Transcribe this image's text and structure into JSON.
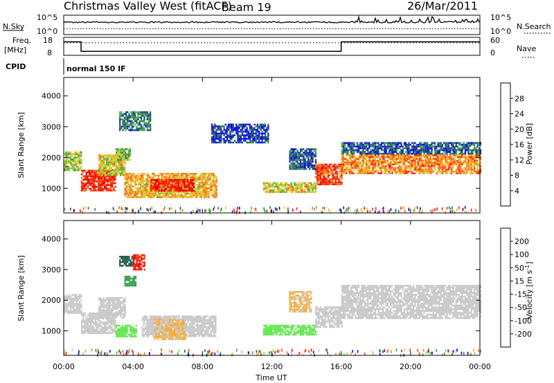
{
  "header": {
    "title": "Christmas Valley West (fitACF)",
    "beam": "Beam 19",
    "date": "26/Mar/2011"
  },
  "strip_labels": {
    "nsky": "N.Sky",
    "nsky_ticks": [
      "10^5",
      "10^0"
    ],
    "nsearch": "N.Search",
    "nsearch_ticks": [
      "10^5",
      "10^0"
    ],
    "freq": "Freq.",
    "freq_unit": "[MHz]",
    "freq_ticks": [
      "18",
      "8"
    ],
    "nave": "Nave",
    "nave_ticks": [
      "60",
      "0"
    ],
    "cpid": "CPID",
    "cpid_value": "normal 150 IF"
  },
  "colors": {
    "power_scale": [
      "#0000ff",
      "#1e3c8c",
      "#2d7d5a",
      "#46b43c",
      "#c8d22d",
      "#ffaa1e",
      "#ff6414",
      "#ff1e00",
      "#e60000"
    ],
    "velocity_scale": [
      "#0000ff",
      "#1e5a46",
      "#37a050",
      "#64e650",
      "#c8c8c8",
      "#ffaa28",
      "#ff7814",
      "#ff3c0a",
      "#ff0000"
    ]
  },
  "chart_data": [
    {
      "type": "heatmap",
      "name": "power",
      "ylabel": "Slant Range [km]",
      "yticks": [
        "1000",
        "2000",
        "3000",
        "4000"
      ],
      "ylim": [
        200,
        4600
      ],
      "xlim": [
        "00:00",
        "24:00"
      ],
      "colorbar_label": "Power [dB]",
      "colorbar_ticks": [
        "4",
        "8",
        "12",
        "16",
        "20",
        "24",
        "28"
      ],
      "colorbar_range": [
        0,
        30
      ],
      "regions": [
        {
          "t0": 0.0,
          "t1": 1.0,
          "r0": 1600,
          "r1": 2200,
          "value": 14
        },
        {
          "t0": 1.0,
          "t1": 3.0,
          "r0": 900,
          "r1": 1600,
          "value": 26
        },
        {
          "t0": 2.0,
          "t1": 3.5,
          "r0": 1400,
          "r1": 2100,
          "value": 16
        },
        {
          "t0": 3.0,
          "t1": 3.8,
          "r0": 1900,
          "r1": 2300,
          "value": 12
        },
        {
          "t0": 3.2,
          "t1": 5.0,
          "r0": 2900,
          "r1": 3500,
          "value": 8
        },
        {
          "t0": 3.5,
          "t1": 8.8,
          "r0": 700,
          "r1": 1500,
          "value": 18
        },
        {
          "t0": 5.0,
          "t1": 7.5,
          "r0": 900,
          "r1": 1300,
          "value": 26
        },
        {
          "t0": 8.5,
          "t1": 11.8,
          "r0": 2500,
          "r1": 3100,
          "value": 4
        },
        {
          "t0": 11.5,
          "t1": 14.5,
          "r0": 900,
          "r1": 1200,
          "value": 16
        },
        {
          "t0": 13.0,
          "t1": 14.5,
          "r0": 1600,
          "r1": 2300,
          "value": 6
        },
        {
          "t0": 14.5,
          "t1": 16.0,
          "r0": 1100,
          "r1": 1800,
          "value": 24
        },
        {
          "t0": 16.0,
          "t1": 24.0,
          "r0": 2100,
          "r1": 2500,
          "value": 6
        },
        {
          "t0": 16.0,
          "t1": 24.0,
          "r0": 1500,
          "r1": 2100,
          "value": 20
        }
      ]
    },
    {
      "type": "heatmap",
      "name": "velocity",
      "ylabel": "Slant Range [km]",
      "yticks": [
        "1000",
        "2000",
        "3000",
        "4000"
      ],
      "ylim": [
        200,
        4600
      ],
      "xlim": [
        "00:00",
        "24:00"
      ],
      "xticks": [
        "00:00",
        "04:00",
        "08:00",
        "12:00",
        "16:00",
        "20:00",
        "00:00"
      ],
      "xlabel": "Time UT",
      "colorbar_label": "Velocity [m s^-1]",
      "colorbar_ticks": [
        "200",
        "100",
        "50",
        "15",
        "-15",
        "-50",
        "-100",
        "-200"
      ],
      "colorbar_range": [
        -250,
        250
      ],
      "regions": [
        {
          "t0": 0.0,
          "t1": 1.0,
          "r0": 1600,
          "r1": 2200,
          "value": 0
        },
        {
          "t0": 1.0,
          "t1": 3.0,
          "r0": 900,
          "r1": 1600,
          "value": 0
        },
        {
          "t0": 2.0,
          "t1": 3.5,
          "r0": 1400,
          "r1": 2100,
          "value": 0
        },
        {
          "t0": 3.0,
          "t1": 4.2,
          "r0": 800,
          "r1": 1200,
          "value": -50
        },
        {
          "t0": 3.2,
          "t1": 4.0,
          "r0": 3100,
          "r1": 3450,
          "value": -150
        },
        {
          "t0": 4.0,
          "t1": 4.7,
          "r0": 3000,
          "r1": 3500,
          "value": 200
        },
        {
          "t0": 3.5,
          "t1": 4.2,
          "r0": 2500,
          "r1": 2800,
          "value": -120
        },
        {
          "t0": 4.5,
          "t1": 8.8,
          "r0": 800,
          "r1": 1500,
          "value": 0
        },
        {
          "t0": 5.2,
          "t1": 7.0,
          "r0": 700,
          "r1": 1400,
          "value": 30
        },
        {
          "t0": 11.5,
          "t1": 14.5,
          "r0": 900,
          "r1": 1200,
          "value": -40
        },
        {
          "t0": 13.0,
          "t1": 14.3,
          "r0": 1600,
          "r1": 2300,
          "value": 30
        },
        {
          "t0": 14.5,
          "t1": 16.0,
          "r0": 1100,
          "r1": 1800,
          "value": 0
        },
        {
          "t0": 16.0,
          "t1": 24.0,
          "r0": 1400,
          "r1": 2500,
          "value": 0
        }
      ]
    }
  ],
  "strip_data": {
    "freq": {
      "ylim": [
        8,
        18
      ],
      "t": [
        "00:00",
        "01:00",
        "01:00",
        "16:00",
        "16:00",
        "24:00"
      ],
      "values": [
        15.5,
        15.5,
        10.2,
        10.2,
        15.5,
        15.5
      ]
    },
    "nave_dots": {
      "ylim": [
        0,
        60
      ],
      "value": 42
    },
    "nsky": {
      "ylim": [
        0,
        5
      ],
      "value": 3.2
    },
    "nsearch": {
      "ylim": [
        0,
        5
      ],
      "value": 1.5
    }
  },
  "xaxis": {
    "ticks": [
      "00:00",
      "04:00",
      "08:00",
      "12:00",
      "16:00",
      "20:00",
      "00:00"
    ],
    "label": "Time UT"
  }
}
